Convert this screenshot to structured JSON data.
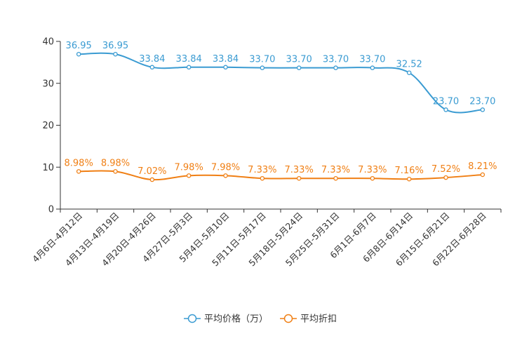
{
  "chart_data": {
    "type": "line",
    "title": "",
    "xlabel": "",
    "ylabel": "",
    "ylim": [
      0,
      40
    ],
    "yticks": [
      0,
      10,
      20,
      30,
      40
    ],
    "grid": false,
    "legend_position": "bottom",
    "categories": [
      "4月6日-4月12日",
      "4月13日-4月19日",
      "4月20日-4月26日",
      "4月27日-5月3日",
      "5月4日-5月10日",
      "5月11日-5月17日",
      "5月18日-5月24日",
      "5月25日-5月31日",
      "6月1日-6月7日",
      "6月8日-6月14日",
      "6月15日-6月21日",
      "6月22日-6月28日"
    ],
    "series": [
      {
        "name": "平均价格（万）",
        "color": "#3a9bd2",
        "values": [
          36.95,
          36.95,
          33.84,
          33.84,
          33.84,
          33.7,
          33.7,
          33.7,
          33.7,
          32.52,
          23.7,
          23.7
        ],
        "labels": [
          "36.95",
          "36.95",
          "33.84",
          "33.84",
          "33.84",
          "33.70",
          "33.70",
          "33.70",
          "33.70",
          "32.52",
          "23.70",
          "23.70"
        ]
      },
      {
        "name": "平均折扣",
        "color": "#f07f14",
        "values": [
          8.98,
          8.98,
          7.02,
          7.98,
          7.98,
          7.33,
          7.33,
          7.33,
          7.33,
          7.16,
          7.52,
          8.21
        ],
        "labels": [
          "8.98%",
          "8.98%",
          "7.02%",
          "7.98%",
          "7.98%",
          "7.33%",
          "7.33%",
          "7.33%",
          "7.33%",
          "7.16%",
          "7.52%",
          "8.21%"
        ]
      }
    ]
  }
}
